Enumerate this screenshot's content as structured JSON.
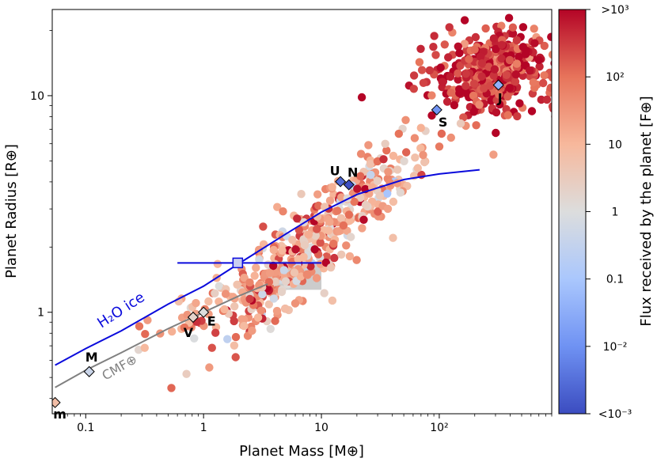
{
  "chart_data": {
    "type": "scatter",
    "xlabel": "Planet Mass [M⊕]",
    "ylabel": "Planet Radius [R⊕]",
    "xscale": "log",
    "yscale": "log",
    "xlim": [
      0.052,
      900
    ],
    "ylim": [
      0.34,
      25
    ],
    "x_ticks": [
      {
        "v": 0.1,
        "label": "0.1"
      },
      {
        "v": 1,
        "label": "1"
      },
      {
        "v": 10,
        "label": "10"
      },
      {
        "v": 100,
        "label": "10²"
      }
    ],
    "y_ticks": [
      {
        "v": 1,
        "label": "1"
      },
      {
        "v": 10,
        "label": "10"
      }
    ],
    "colorbar": {
      "label": "Flux received by the planet [F⊕]",
      "scale": "log",
      "range": [
        0.001,
        1000
      ],
      "ticks": [
        {
          "v": 1000,
          "label": ">10³"
        },
        {
          "v": 100,
          "label": "10²"
        },
        {
          "v": 10,
          "label": "10"
        },
        {
          "v": 1,
          "label": "1"
        },
        {
          "v": 0.1,
          "label": "0.1"
        },
        {
          "v": 0.01,
          "label": "10⁻²"
        },
        {
          "v": 0.001,
          "label": "<10⁻³"
        }
      ],
      "colors": [
        "#3b4cc0",
        "#6f92f3",
        "#aac7fd",
        "#dcdddd",
        "#f7b89c",
        "#e7745b",
        "#b40426"
      ]
    },
    "planets": [
      {
        "label": "m",
        "mass": 0.055,
        "radius": 0.383,
        "flux": 6.7
      },
      {
        "label": "M",
        "mass": 0.107,
        "radius": 0.532,
        "flux": 0.43
      },
      {
        "label": "V",
        "mass": 0.815,
        "radius": 0.949,
        "flux": 1.9
      },
      {
        "label": "E",
        "mass": 1.0,
        "radius": 1.0,
        "flux": 1.0
      },
      {
        "label": "U",
        "mass": 14.5,
        "radius": 4.01,
        "flux": 0.0027
      },
      {
        "label": "N",
        "mass": 17.1,
        "radius": 3.88,
        "flux": 0.0011
      },
      {
        "label": "S",
        "mass": 95.2,
        "radius": 8.6,
        "flux": 0.011
      },
      {
        "label": "J",
        "mass": 317.8,
        "radius": 11.2,
        "flux": 0.037
      }
    ],
    "curves": [
      {
        "label": "H₂O ice",
        "color": "#0a0adc",
        "points": [
          [
            0.055,
            0.57
          ],
          [
            0.1,
            0.68
          ],
          [
            0.2,
            0.82
          ],
          [
            0.5,
            1.09
          ],
          [
            1.0,
            1.32
          ],
          [
            2.0,
            1.68
          ],
          [
            5.0,
            2.3
          ],
          [
            10,
            2.9
          ],
          [
            20,
            3.5
          ],
          [
            50,
            4.1
          ],
          [
            100,
            4.35
          ],
          [
            220,
            4.55
          ]
        ]
      },
      {
        "label": "CMF⊕",
        "color": "#808080",
        "points": [
          [
            0.055,
            0.45
          ],
          [
            0.1,
            0.54
          ],
          [
            0.2,
            0.65
          ],
          [
            0.5,
            0.84
          ],
          [
            1.0,
            1.0
          ],
          [
            2.0,
            1.19
          ],
          [
            3.5,
            1.35
          ]
        ]
      }
    ],
    "marker": {
      "mass": 1.95,
      "radius": 1.69,
      "xerr": [
        0.6,
        10
      ]
    },
    "gray_box": {
      "x_range": [
        3.5,
        10
      ],
      "y_range": [
        1.27,
        1.72
      ]
    },
    "seed": 7
  }
}
